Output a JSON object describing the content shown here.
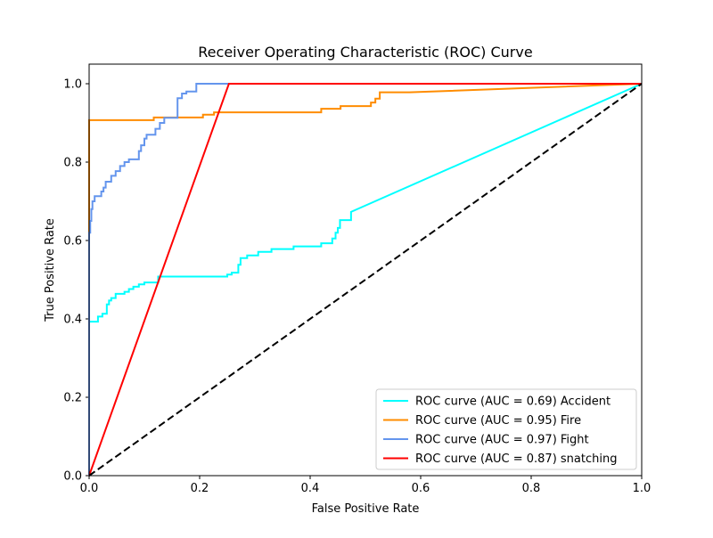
{
  "chart_data": {
    "type": "line",
    "title": "Receiver Operating Characteristic (ROC) Curve",
    "xlabel": "False Positive Rate",
    "ylabel": "True Positive Rate",
    "xlim": [
      0,
      1
    ],
    "ylim": [
      0,
      1.05
    ],
    "xticks": [
      0.0,
      0.2,
      0.4,
      0.6,
      0.8,
      1.0
    ],
    "yticks": [
      0.0,
      0.2,
      0.4,
      0.6,
      0.8,
      1.0
    ],
    "xtick_labels": [
      "0.0",
      "0.2",
      "0.4",
      "0.6",
      "0.8",
      "1.0"
    ],
    "ytick_labels": [
      "0.0",
      "0.2",
      "0.4",
      "0.6",
      "0.8",
      "1.0"
    ],
    "grid": false,
    "legend_position": "lower-right",
    "series": [
      {
        "name": "ROC curve (AUC = 0.69) Accident",
        "color": "#00ffff",
        "x": [
          0.0,
          0.0,
          0.0,
          0.016,
          0.016,
          0.024,
          0.024,
          0.032,
          0.032,
          0.036,
          0.036,
          0.04,
          0.04,
          0.048,
          0.048,
          0.064,
          0.064,
          0.072,
          0.072,
          0.08,
          0.08,
          0.09,
          0.09,
          0.1,
          0.1,
          0.125,
          0.125,
          0.25,
          0.25,
          0.258,
          0.258,
          0.27,
          0.27,
          0.274,
          0.274,
          0.286,
          0.286,
          0.306,
          0.306,
          0.33,
          0.33,
          0.37,
          0.37,
          0.42,
          0.42,
          0.44,
          0.44,
          0.446,
          0.446,
          0.45,
          0.45,
          0.454,
          0.454,
          0.458,
          0.458,
          0.474,
          0.474,
          1.0
        ],
        "y": [
          0.0,
          0.37,
          0.393,
          0.393,
          0.406,
          0.406,
          0.413,
          0.413,
          0.437,
          0.437,
          0.447,
          0.447,
          0.453,
          0.453,
          0.464,
          0.464,
          0.469,
          0.469,
          0.476,
          0.476,
          0.482,
          0.482,
          0.488,
          0.488,
          0.493,
          0.493,
          0.508,
          0.508,
          0.513,
          0.513,
          0.518,
          0.518,
          0.538,
          0.538,
          0.555,
          0.555,
          0.562,
          0.562,
          0.571,
          0.571,
          0.578,
          0.578,
          0.585,
          0.585,
          0.593,
          0.593,
          0.605,
          0.605,
          0.62,
          0.62,
          0.632,
          0.632,
          0.652,
          0.652,
          0.652,
          0.652,
          0.673,
          1.0
        ]
      },
      {
        "name": "ROC curve (AUC = 0.95) Fire",
        "color": "#ff8c00",
        "x": [
          0.0,
          0.0,
          0.117,
          0.117,
          0.206,
          0.206,
          0.226,
          0.226,
          0.42,
          0.42,
          0.455,
          0.455,
          0.51,
          0.51,
          0.518,
          0.518,
          0.526,
          0.526,
          0.58,
          1.0
        ],
        "y": [
          0.0,
          0.907,
          0.907,
          0.914,
          0.914,
          0.921,
          0.921,
          0.927,
          0.927,
          0.936,
          0.936,
          0.943,
          0.943,
          0.952,
          0.952,
          0.962,
          0.962,
          0.978,
          0.978,
          1.0
        ]
      },
      {
        "name": "ROC curve (AUC = 0.97) Fight",
        "color": "#6495ed",
        "x": [
          0.0,
          0.0,
          0.002,
          0.002,
          0.004,
          0.004,
          0.006,
          0.006,
          0.01,
          0.01,
          0.022,
          0.022,
          0.026,
          0.026,
          0.03,
          0.03,
          0.04,
          0.04,
          0.048,
          0.048,
          0.056,
          0.056,
          0.064,
          0.064,
          0.072,
          0.072,
          0.09,
          0.09,
          0.094,
          0.094,
          0.1,
          0.1,
          0.104,
          0.104,
          0.12,
          0.12,
          0.128,
          0.128,
          0.136,
          0.136,
          0.16,
          0.16,
          0.168,
          0.168,
          0.176,
          0.176,
          0.194,
          0.194,
          1.0
        ],
        "y": [
          0.0,
          0.62,
          0.62,
          0.65,
          0.65,
          0.68,
          0.68,
          0.7,
          0.7,
          0.713,
          0.713,
          0.725,
          0.725,
          0.735,
          0.735,
          0.75,
          0.75,
          0.765,
          0.765,
          0.777,
          0.777,
          0.79,
          0.79,
          0.8,
          0.8,
          0.807,
          0.807,
          0.828,
          0.828,
          0.843,
          0.843,
          0.86,
          0.86,
          0.87,
          0.87,
          0.885,
          0.885,
          0.9,
          0.9,
          0.913,
          0.913,
          0.963,
          0.963,
          0.975,
          0.975,
          0.98,
          0.98,
          1.0,
          1.0
        ]
      },
      {
        "name": "ROC curve (AUC = 0.87) snatching",
        "color": "#ff0000",
        "x": [
          0.0,
          0.253,
          1.0
        ],
        "y": [
          0.0,
          1.0,
          1.0
        ]
      }
    ],
    "reference_line": {
      "color": "#000000",
      "x": [
        0.0,
        1.0
      ],
      "y": [
        0.0,
        1.0
      ],
      "style": "dashed"
    }
  }
}
